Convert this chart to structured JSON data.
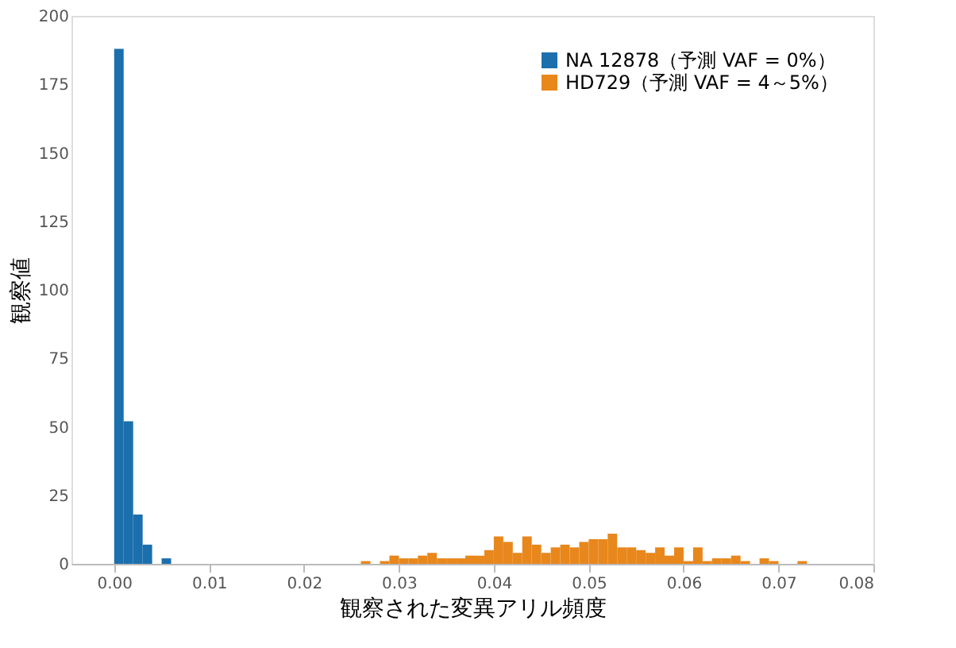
{
  "chart_data": {
    "type": "histogram",
    "xlabel": "観察された変異アリル頻度",
    "ylabel": "観察値",
    "bins": [
      0,
      0.001,
      0.002,
      0.003,
      0.004,
      0.005,
      0.006,
      0.007,
      0.008,
      0.009,
      0.01,
      0.011,
      0.012,
      0.013,
      0.014,
      0.015,
      0.016,
      0.017,
      0.018,
      0.019,
      0.02,
      0.021,
      0.022,
      0.023,
      0.024,
      0.025,
      0.026,
      0.027,
      0.028,
      0.029,
      0.03,
      0.031,
      0.032,
      0.033,
      0.034,
      0.035,
      0.036,
      0.037,
      0.038,
      0.039,
      0.04,
      0.041,
      0.042,
      0.043,
      0.044,
      0.045,
      0.046,
      0.047,
      0.048,
      0.049,
      0.05,
      0.051,
      0.052,
      0.053,
      0.054,
      0.055,
      0.056,
      0.057,
      0.058,
      0.059,
      0.06,
      0.061,
      0.062,
      0.063,
      0.064,
      0.065,
      0.066,
      0.067,
      0.068,
      0.069,
      0.07,
      0.071,
      0.072,
      0.073,
      0.074
    ],
    "series": [
      {
        "name": "NA 12878（予測 VAF = 0%）",
        "color": "#1b6fad",
        "values": [
          188,
          52,
          18,
          7,
          0,
          2,
          0,
          0,
          0,
          0,
          0,
          0,
          0,
          0,
          0,
          0,
          0,
          0,
          0,
          0,
          0,
          0,
          0,
          0,
          0,
          0,
          0,
          0,
          0,
          0,
          0,
          0,
          0,
          0,
          0,
          0,
          0,
          0,
          0,
          0,
          0,
          0,
          0,
          0,
          0,
          0,
          0,
          0,
          0,
          0,
          0,
          0,
          0,
          0,
          0,
          0,
          0,
          0,
          0,
          0,
          0,
          0,
          0,
          0,
          0,
          0,
          0,
          0,
          0,
          0,
          0,
          0,
          0,
          0
        ]
      },
      {
        "name": "HD729（予測 VAF = 4～5%）",
        "color": "#e8871c",
        "values": [
          0,
          0,
          0,
          0,
          0,
          0,
          0,
          0,
          0,
          0,
          0,
          0,
          0,
          0,
          0,
          0,
          0,
          0,
          0,
          0,
          0,
          0,
          0,
          0,
          0,
          0,
          1,
          0,
          1,
          3,
          2,
          2,
          3,
          4,
          2,
          2,
          2,
          3,
          3,
          5,
          10,
          8,
          4,
          10,
          7,
          4,
          6,
          7,
          6,
          8,
          9,
          9,
          11,
          6,
          6,
          5,
          4,
          6,
          3,
          6,
          1,
          6,
          1,
          2,
          2,
          3,
          1,
          0,
          2,
          1,
          0,
          0,
          1,
          0
        ]
      }
    ],
    "xlim": [
      -0.0045,
      0.08
    ],
    "ylim": [
      0,
      200
    ],
    "xticks": [
      {
        "value": 0,
        "label": "0.00"
      },
      {
        "value": 0.01,
        "label": "0.01"
      },
      {
        "value": 0.02,
        "label": "0.02"
      },
      {
        "value": 0.03,
        "label": "0.03"
      },
      {
        "value": 0.04,
        "label": "0.04"
      },
      {
        "value": 0.05,
        "label": "0.05"
      },
      {
        "value": 0.06,
        "label": "0.06"
      },
      {
        "value": 0.07,
        "label": "0.07"
      },
      {
        "value": 0.08,
        "label": "0.08"
      }
    ],
    "yticks": [
      0,
      25,
      50,
      75,
      100,
      125,
      150,
      175,
      200
    ],
    "legend": "top right"
  }
}
